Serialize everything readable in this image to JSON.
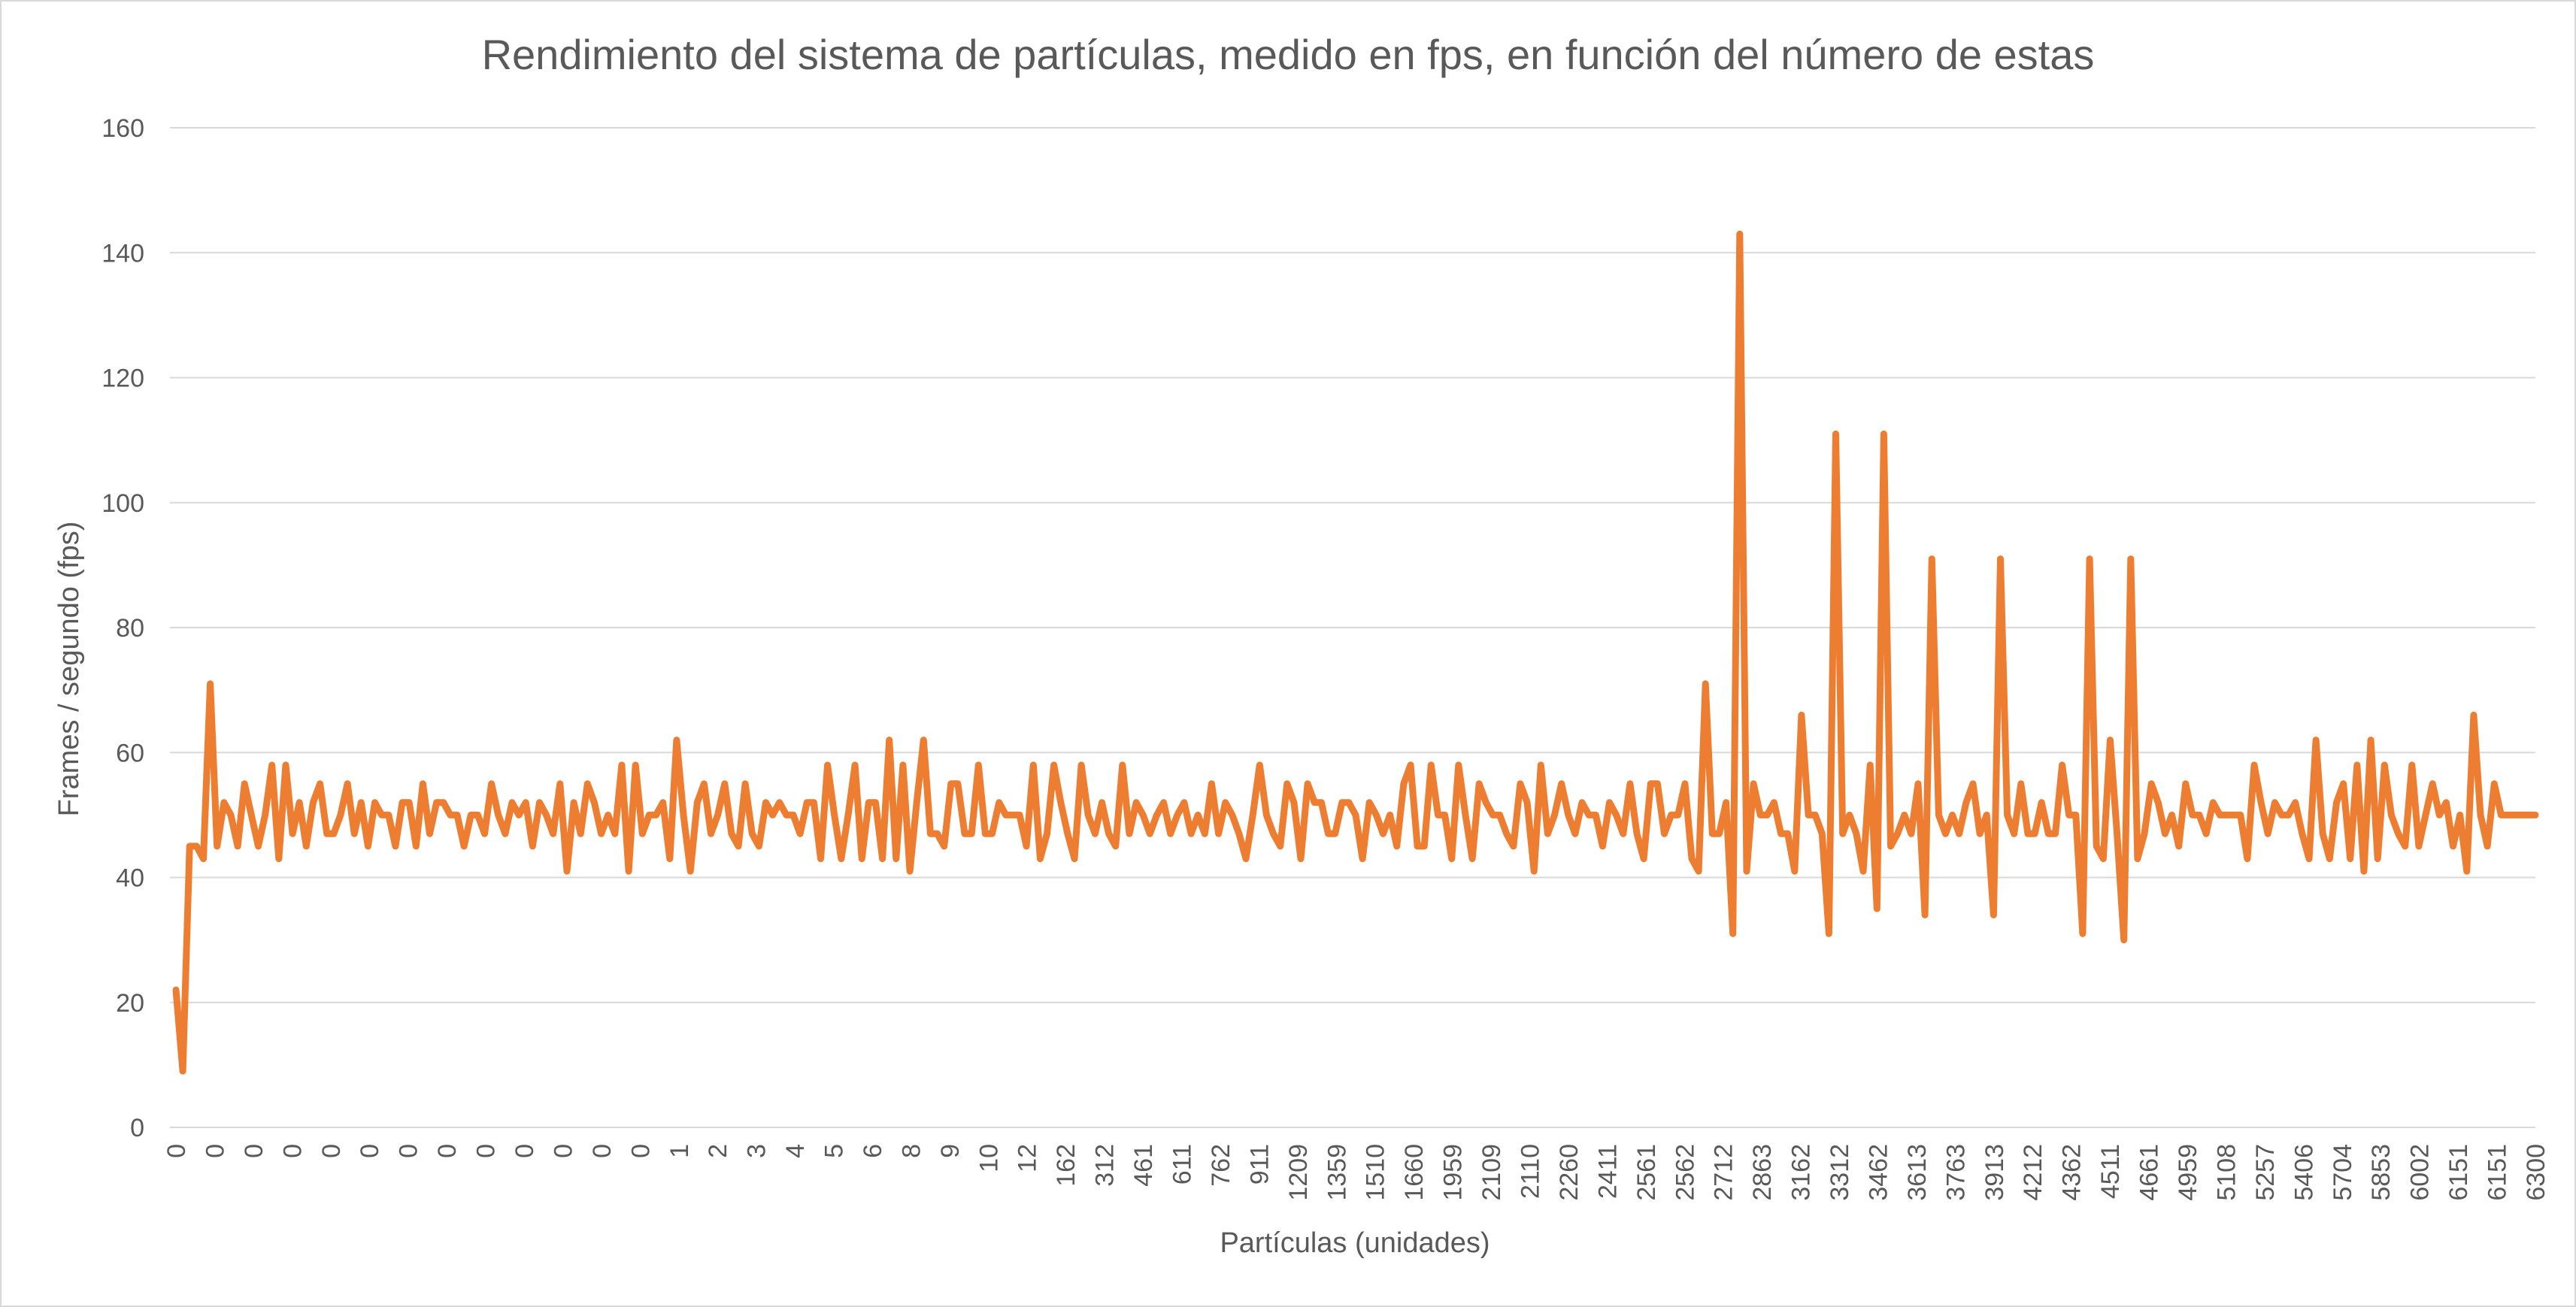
{
  "chart_data": {
    "type": "line",
    "title": "Rendimiento del sistema de partículas, medido en fps, en función del número de estas",
    "xlabel": "Partículas (unidades)",
    "ylabel": "Frames / segundo (fps)",
    "ylim": [
      0,
      160
    ],
    "yticks": [
      0,
      20,
      40,
      60,
      80,
      100,
      120,
      140,
      160
    ],
    "grid": true,
    "legend": "none",
    "series_color": "#ED7D31",
    "gridline_color": "#d9d9d9",
    "x_tick_labels": [
      "0",
      "0",
      "0",
      "0",
      "0",
      "0",
      "0",
      "0",
      "0",
      "0",
      "0",
      "0",
      "0",
      "1",
      "2",
      "3",
      "4",
      "5",
      "6",
      "8",
      "9",
      "10",
      "12",
      "162",
      "312",
      "461",
      "611",
      "762",
      "911",
      "1209",
      "1359",
      "1510",
      "1660",
      "1959",
      "2109",
      "2110",
      "2260",
      "2411",
      "2561",
      "2562",
      "2712",
      "2863",
      "3162",
      "3312",
      "3462",
      "3613",
      "3763",
      "3913",
      "4212",
      "4362",
      "4511",
      "4661",
      "4959",
      "5108",
      "5257",
      "5406",
      "5704",
      "5853",
      "6002",
      "6151",
      "6151",
      "6300"
    ],
    "series": [
      {
        "values": [
          22,
          9,
          45,
          45,
          43,
          71,
          45,
          52,
          50,
          45,
          55,
          50,
          45,
          50,
          58,
          43,
          58,
          47,
          52,
          45,
          52,
          55,
          47,
          47,
          50,
          55,
          47,
          52,
          45,
          52,
          50,
          50,
          45,
          52,
          52,
          45,
          55,
          47,
          52,
          52,
          50,
          50,
          45,
          50,
          50,
          47,
          55,
          50,
          47,
          52,
          50,
          52,
          45,
          52,
          50,
          47,
          55,
          41,
          52,
          47,
          55,
          52,
          47,
          50,
          47,
          58,
          41,
          58,
          47,
          50,
          50,
          52,
          43,
          62,
          50,
          41,
          52,
          55,
          47,
          50,
          55,
          47,
          45,
          55,
          47,
          45,
          52,
          50,
          52,
          50,
          50,
          47,
          52,
          52,
          43,
          58,
          50,
          43,
          50,
          58,
          43,
          52,
          52,
          43,
          62,
          43,
          58,
          41,
          52,
          62,
          47,
          47,
          45,
          55,
          55,
          47,
          47,
          58,
          47,
          47,
          52,
          50,
          50,
          50,
          45,
          58,
          43,
          47,
          58,
          52,
          47,
          43,
          58,
          50,
          47,
          52,
          47,
          45,
          58,
          47,
          52,
          50,
          47,
          50,
          52,
          47,
          50,
          52,
          47,
          50,
          47,
          55,
          47,
          52,
          50,
          47,
          43,
          50,
          58,
          50,
          47,
          45,
          55,
          52,
          43,
          55,
          52,
          52,
          47,
          47,
          52,
          52,
          50,
          43,
          52,
          50,
          47,
          50,
          45,
          55,
          58,
          45,
          45,
          58,
          50,
          50,
          43,
          58,
          50,
          43,
          55,
          52,
          50,
          50,
          47,
          45,
          55,
          52,
          41,
          58,
          47,
          50,
          55,
          50,
          47,
          52,
          50,
          50,
          45,
          52,
          50,
          47,
          55,
          47,
          43,
          55,
          55,
          47,
          50,
          50,
          55,
          43,
          41,
          71,
          47,
          47,
          52,
          31,
          143,
          41,
          55,
          50,
          50,
          52,
          47,
          47,
          41,
          66,
          50,
          50,
          47,
          31,
          111,
          47,
          50,
          47,
          41,
          58,
          35,
          111,
          45,
          47,
          50,
          47,
          55,
          34,
          91,
          50,
          47,
          50,
          47,
          52,
          55,
          47,
          50,
          34,
          91,
          50,
          47,
          55,
          47,
          47,
          52,
          47,
          47,
          58,
          50,
          50,
          31,
          91,
          45,
          43,
          62,
          47,
          30,
          91,
          43,
          47,
          55,
          52,
          47,
          50,
          45,
          55,
          50,
          50,
          47,
          52,
          50,
          50,
          50,
          50,
          43,
          58,
          52,
          47,
          52,
          50,
          50,
          52,
          47,
          43,
          62,
          47,
          43,
          52,
          55,
          43,
          58,
          41,
          62,
          43,
          58,
          50,
          47,
          45,
          58,
          45,
          50,
          55,
          50,
          52,
          45,
          50,
          41,
          66,
          50,
          45,
          55,
          50,
          50,
          50,
          50,
          50,
          50
        ]
      }
    ]
  }
}
